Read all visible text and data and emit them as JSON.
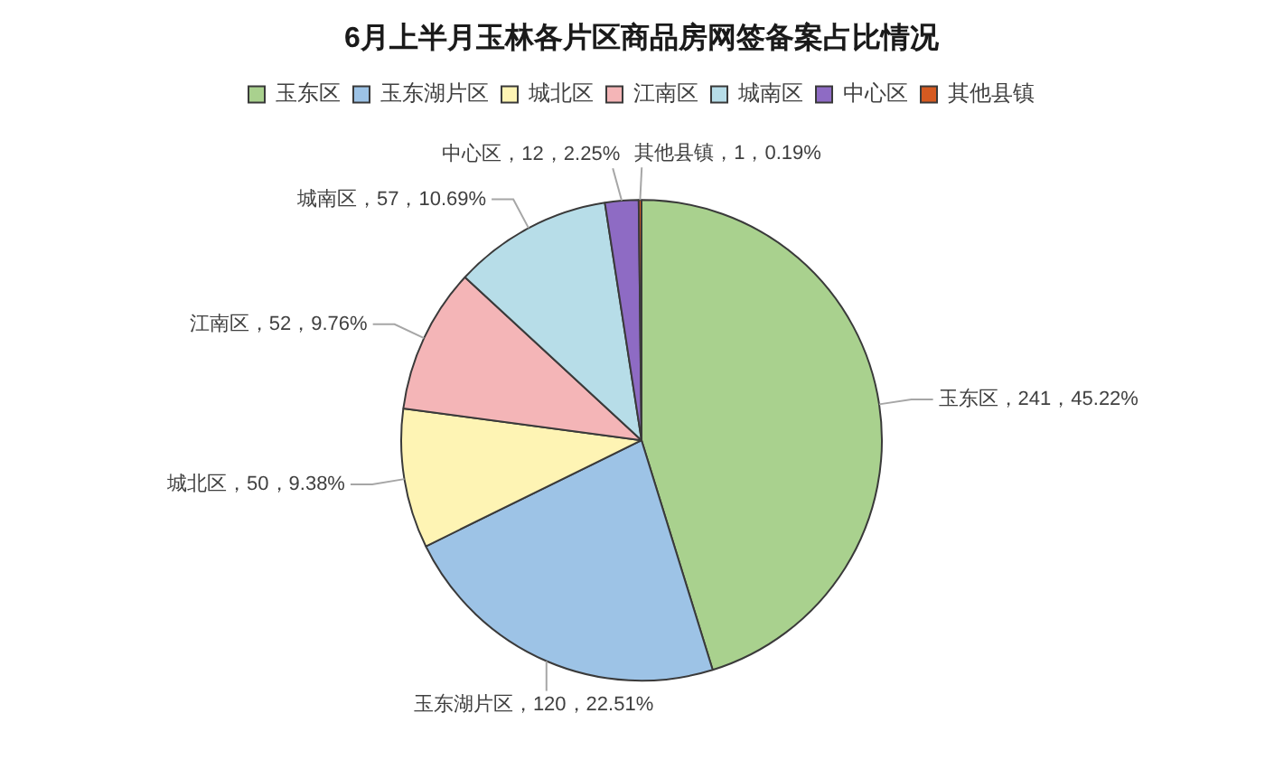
{
  "chart_data": {
    "type": "pie",
    "title": "6月上半月玉林各片区商品房网签备案占比情况",
    "categories": [
      "玉东区",
      "玉东湖片区",
      "城北区",
      "江南区",
      "城南区",
      "中心区",
      "其他县镇"
    ],
    "values": [
      241,
      120,
      50,
      52,
      57,
      12,
      1
    ],
    "colors": [
      "#a9d18e",
      "#9dc3e6",
      "#fef4b4",
      "#f4b5b7",
      "#b7dde8",
      "#8e6bc4",
      "#d55a21"
    ],
    "value_labels": [
      "玉东区，241，45.22%",
      "玉东湖片区，120，22.51%",
      "城北区，50，9.38%",
      "江南区，52，9.76%",
      "城南区，57，10.69%",
      "中心区，12，2.25%",
      "其他县镇，1，0.19%"
    ],
    "legend": "top"
  }
}
